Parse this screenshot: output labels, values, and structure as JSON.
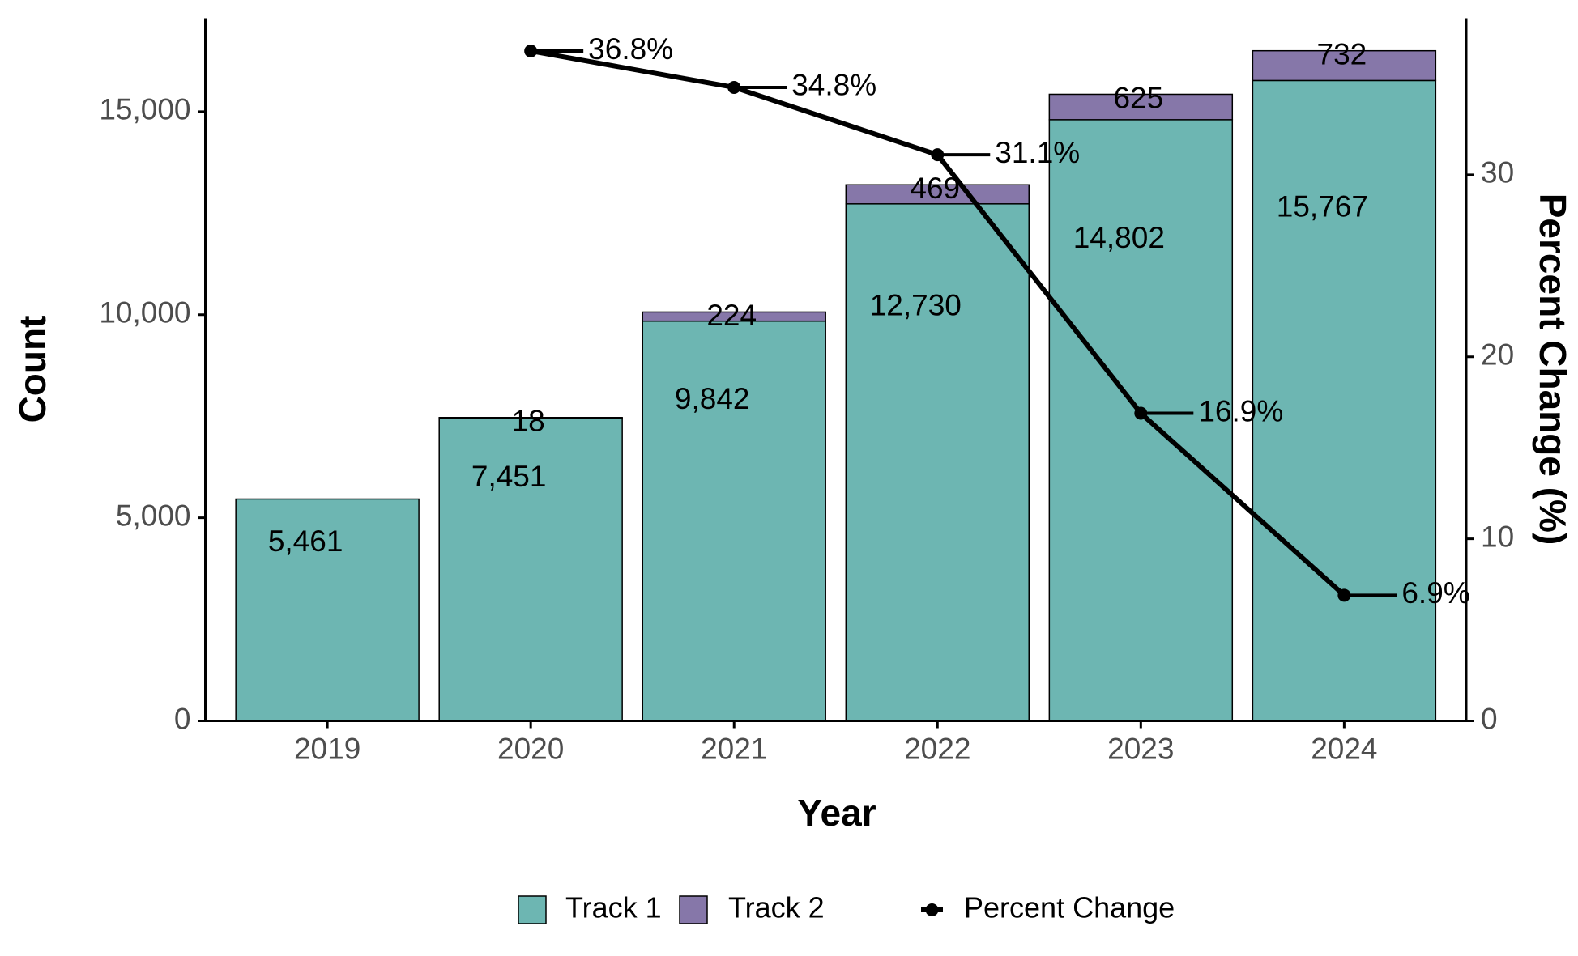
{
  "chart_data": {
    "type": "bar",
    "stacked": true,
    "x_label": "Year",
    "y_label": "Count",
    "y2_label": "Percent Change (%)",
    "categories": [
      "2019",
      "2020",
      "2021",
      "2022",
      "2023",
      "2024"
    ],
    "series": [
      {
        "name": "Track 1",
        "type": "bar",
        "color": "#6db6b2",
        "values": [
          5461,
          7451,
          9842,
          12730,
          14802,
          15767
        ],
        "value_labels": [
          "5,461",
          "7,451",
          "9,842",
          "12,730",
          "14,802",
          "15,767"
        ]
      },
      {
        "name": "Track 2",
        "type": "bar",
        "color": "#8677a9",
        "values": [
          null,
          18,
          224,
          469,
          625,
          732
        ]
      },
      {
        "name": "Percent Change",
        "type": "line",
        "axis": "y2",
        "color": "#000000",
        "values": [
          null,
          36.8,
          34.8,
          31.1,
          16.9,
          6.9
        ],
        "value_labels": [
          null,
          "36.8%",
          "34.8%",
          "31.1%",
          "16.9%",
          "6.9%"
        ]
      }
    ],
    "ylim": [
      0,
      17300
    ],
    "yticks": [
      0,
      {
        "value": 5000,
        "label": "5,000"
      },
      {
        "value": 10000,
        "label": "10,000"
      },
      {
        "value": 15000,
        "label": "15,000"
      }
    ],
    "y2lim": [
      0,
      38.6
    ],
    "y2ticks": [
      0,
      10,
      20,
      30
    ],
    "legend": "bottom"
  }
}
